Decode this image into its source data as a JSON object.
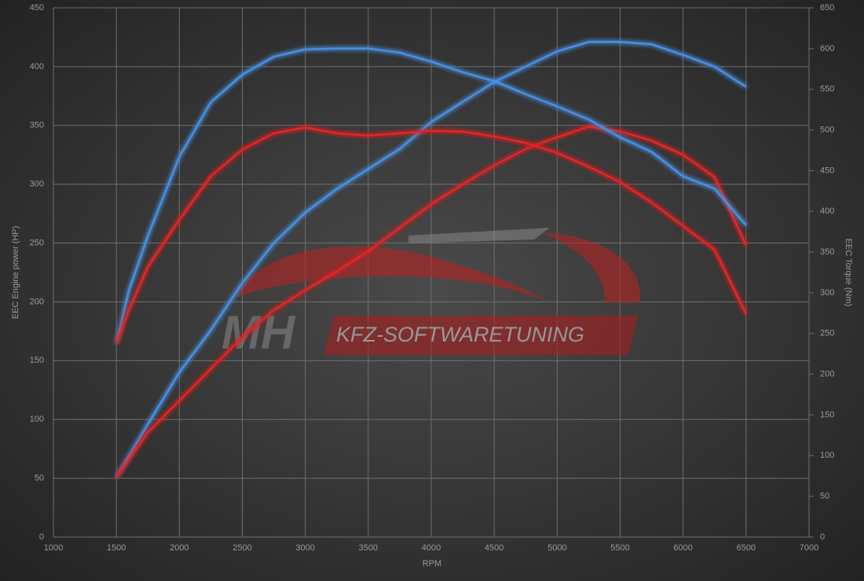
{
  "chart_data": {
    "type": "line",
    "xlabel": "RPM",
    "ylabel": "EEC Engine power (HP)",
    "y2label": "EEC Torque (Nm)",
    "watermark": {
      "logo": "MH",
      "text": "KFZ-SOFTWARETUNING"
    },
    "x": [
      1500,
      1600,
      1750,
      2000,
      2250,
      2500,
      2750,
      3000,
      3250,
      3500,
      3750,
      4000,
      4250,
      4500,
      4750,
      5000,
      5250,
      5500,
      5750,
      6000,
      6250,
      6500
    ],
    "series": [
      {
        "color": "#4a8fe0",
        "axis": "y",
        "values": [
          51,
          69,
          96,
          140,
          176,
          216,
          250,
          276,
          296,
          313,
          330,
          353,
          370,
          387,
          400,
          413,
          421,
          421,
          419,
          410,
          400,
          383
        ]
      },
      {
        "color": "#e02828",
        "axis": "y",
        "values": [
          51,
          66,
          89,
          116,
          143,
          170,
          193,
          210,
          226,
          243,
          263,
          283,
          300,
          316,
          330,
          340,
          349,
          345,
          337,
          325,
          306,
          248
        ]
      },
      {
        "color": "#4a8fe0",
        "axis": "y2",
        "values": [
          238,
          303,
          370,
          467,
          534,
          568,
          590,
          599,
          600,
          600,
          595,
          584,
          571,
          560,
          544,
          529,
          513,
          491,
          473,
          443,
          428,
          383
        ]
      },
      {
        "color": "#e02828",
        "axis": "y2",
        "values": [
          238,
          279,
          332,
          390,
          443,
          476,
          496,
          503,
          496,
          493,
          496,
          499,
          498,
          492,
          484,
          472,
          455,
          436,
          411,
          382,
          353,
          274
        ]
      }
    ],
    "xlim": [
      1000,
      7000
    ],
    "xticks": [
      1000,
      1500,
      2000,
      2500,
      3000,
      3500,
      4000,
      4500,
      5000,
      5500,
      6000,
      6500,
      7000
    ],
    "ylim": [
      0,
      450
    ],
    "yticks": [
      0,
      50,
      100,
      150,
      200,
      250,
      300,
      350,
      400,
      450
    ],
    "y2lim": [
      0,
      650
    ],
    "y2ticks": [
      0,
      50,
      100,
      150,
      200,
      250,
      300,
      350,
      400,
      450,
      500,
      550,
      600,
      650
    ],
    "grid": true
  }
}
